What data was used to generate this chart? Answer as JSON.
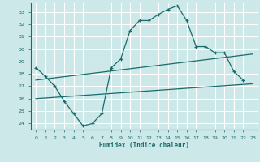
{
  "title": "",
  "xlabel": "Humidex (Indice chaleur)",
  "background_color": "#cce8e8",
  "grid_color": "#ffffff",
  "line_color": "#1a6b6b",
  "xlim": [
    -0.5,
    23.5
  ],
  "ylim": [
    23.5,
    33.7
  ],
  "xticks": [
    0,
    1,
    2,
    3,
    4,
    5,
    6,
    7,
    8,
    9,
    10,
    11,
    12,
    13,
    14,
    15,
    16,
    17,
    18,
    19,
    20,
    21,
    22,
    23
  ],
  "yticks": [
    24,
    25,
    26,
    27,
    28,
    29,
    30,
    31,
    32,
    33
  ],
  "curve_x": [
    0,
    1,
    2,
    3,
    4,
    5,
    6,
    7,
    8,
    9,
    10,
    11,
    12,
    13,
    14,
    15,
    16,
    17,
    18,
    19,
    20,
    21,
    22
  ],
  "curve_y": [
    28.5,
    27.8,
    27.0,
    25.8,
    24.8,
    23.8,
    24.0,
    24.8,
    28.5,
    29.2,
    31.5,
    32.3,
    32.3,
    32.8,
    33.2,
    33.5,
    32.3,
    30.2,
    30.2,
    29.7,
    29.7,
    28.2,
    27.5
  ],
  "trend1_x": [
    0,
    23
  ],
  "trend1_y": [
    26.0,
    27.2
  ],
  "trend2_x": [
    0,
    23
  ],
  "trend2_y": [
    27.5,
    29.6
  ]
}
